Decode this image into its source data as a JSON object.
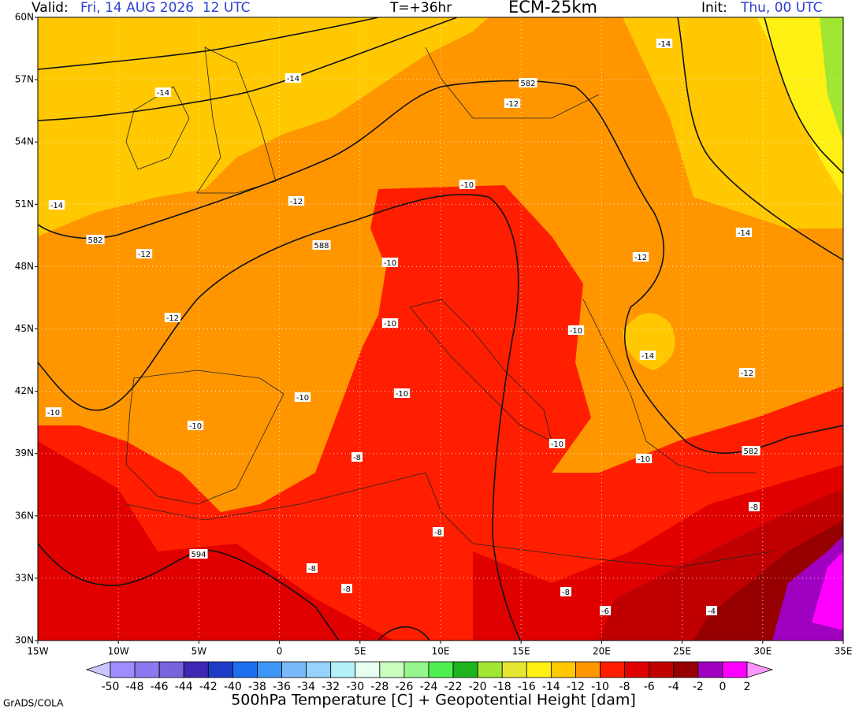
{
  "header": {
    "valid_label": "Valid:",
    "valid_value": "Fri, 14 AUG 2026  12 UTC",
    "forecast": "T=+36hr",
    "model": "ECM-25km",
    "init_label": "Init:",
    "init_value": "Thu, 00 UTC"
  },
  "map": {
    "lat_labels": [
      "60N",
      "57N",
      "54N",
      "51N",
      "48N",
      "45N",
      "42N",
      "39N",
      "36N",
      "33N",
      "30N"
    ],
    "lon_labels": [
      "15W",
      "10W",
      "5W",
      "0",
      "5E",
      "10E",
      "15E",
      "20E",
      "25E",
      "30E",
      "35E"
    ],
    "contour_labels": [
      -14,
      -14,
      -14,
      582,
      -12,
      -10,
      -12,
      -14,
      582,
      -12,
      588,
      -10,
      -12,
      -14,
      -12,
      -10,
      -10,
      -14,
      -12,
      -10,
      -10,
      -10,
      -10,
      -10,
      -10,
      582,
      -8,
      -8,
      -8,
      594,
      -8,
      -8,
      -8,
      -6,
      -4
    ]
  },
  "colorbar": {
    "levels": [
      -50,
      -48,
      -46,
      -44,
      -42,
      -40,
      -38,
      -36,
      -34,
      -32,
      -30,
      -28,
      -26,
      -24,
      -22,
      -20,
      -18,
      -16,
      -14,
      -12,
      -10,
      -8,
      -6,
      -4,
      -2,
      0,
      2
    ],
    "colors": [
      "#c8c8ff",
      "#a08cff",
      "#8c78f0",
      "#7864dc",
      "#3c28b4",
      "#1e3cc8",
      "#1e6ef0",
      "#3c96f5",
      "#78b9fa",
      "#96d2fa",
      "#b4f0fa",
      "#e6fff0",
      "#c8ffbe",
      "#96f58c",
      "#50f050",
      "#1eb41e",
      "#a0e632",
      "#e6e632",
      "#fff014",
      "#ffc800",
      "#ff9600",
      "#ff1e00",
      "#e10000",
      "#c00000",
      "#960000",
      "#a000c0",
      "#ff00ff",
      "#ff96ff"
    ],
    "caption": "500hPa Temperature [C] + Geopotential Height [dam]"
  },
  "credit": "GrADS/COLA"
}
